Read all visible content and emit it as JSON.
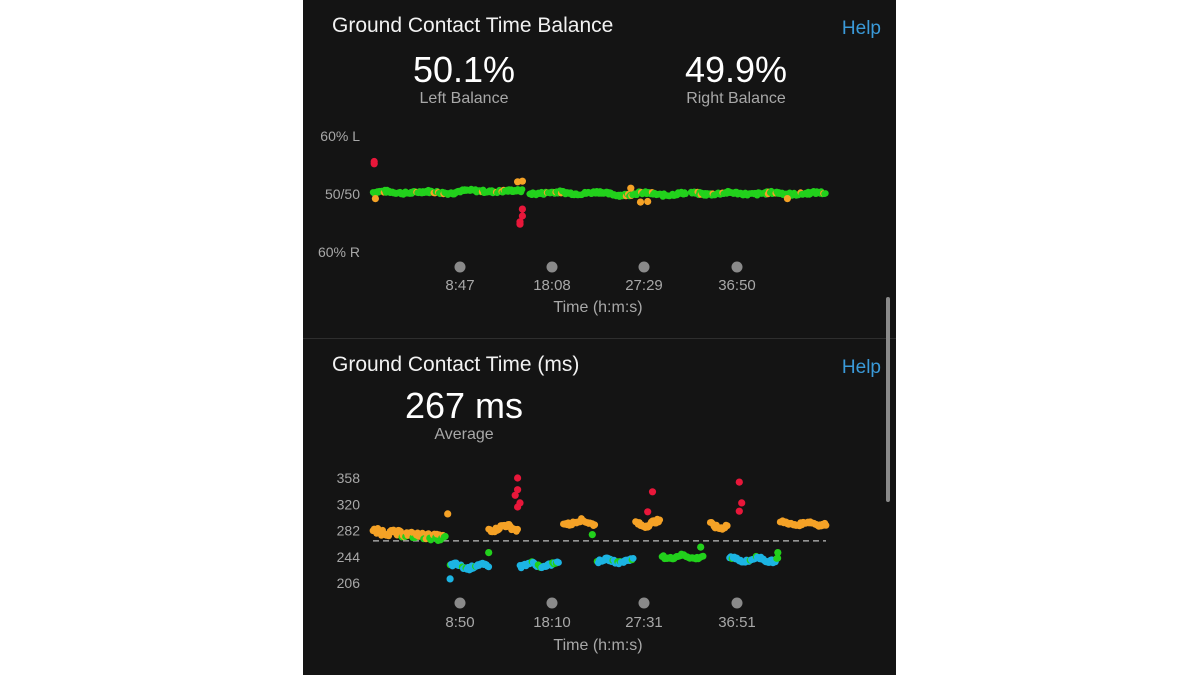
{
  "colors": {
    "background": "#141414",
    "accent_link": "#3a9ad9",
    "green": "#22d11c",
    "orange": "#f5a226",
    "red": "#e8173a",
    "blue": "#1cb4e3",
    "marker_gray": "#8a8a8a"
  },
  "balance": {
    "title": "Ground Contact Time Balance",
    "help_label": "Help",
    "left": {
      "value": "50.1%",
      "label": "Left Balance"
    },
    "right": {
      "value": "49.9%",
      "label": "Right Balance"
    }
  },
  "gct": {
    "title": "Ground Contact Time (ms)",
    "help_label": "Help",
    "average": {
      "value": "267 ms",
      "label": "Average"
    }
  },
  "chart_data": [
    {
      "type": "scatter",
      "title": "Ground Contact Time Balance",
      "xlabel": "Time (h:m:s)",
      "x_tick_labels": [
        "8:47",
        "18:08",
        "27:29",
        "36:50"
      ],
      "y_tick_labels": [
        "60% L",
        "50/50",
        "60% R"
      ],
      "ylim": [
        -10,
        10
      ],
      "grid": false,
      "segments": [
        {
          "from": 0,
          "to": 34,
          "base": 0.3,
          "drift": 0.15
        },
        {
          "from": 34,
          "to": 62,
          "base": 0.5,
          "drift": 0.1
        },
        {
          "from": 65,
          "to": 96,
          "base": 0.2,
          "drift": 0.15
        },
        {
          "from": 96,
          "to": 130,
          "base": 0.0,
          "drift": 0.2
        },
        {
          "from": 132,
          "to": 188,
          "base": 0.1,
          "drift": 0.15
        }
      ],
      "outliers": [
        {
          "t": 0.5,
          "v": 5.2,
          "color": "red"
        },
        {
          "t": 0.5,
          "v": 5.6,
          "color": "red"
        },
        {
          "t": 62,
          "v": -2.6,
          "color": "red"
        },
        {
          "t": 62,
          "v": -3.8,
          "color": "red"
        },
        {
          "t": 61,
          "v": -4.8,
          "color": "red"
        },
        {
          "t": 61,
          "v": -5.2,
          "color": "red"
        },
        {
          "t": 60,
          "v": 2.1,
          "color": "orange"
        },
        {
          "t": 62,
          "v": 2.2,
          "color": "orange"
        },
        {
          "t": 1,
          "v": -0.8,
          "color": "orange"
        },
        {
          "t": 107,
          "v": 1.0,
          "color": "orange"
        },
        {
          "t": 111,
          "v": -1.4,
          "color": "orange"
        },
        {
          "t": 114,
          "v": -1.3,
          "color": "orange"
        },
        {
          "t": 172,
          "v": -0.8,
          "color": "orange"
        }
      ]
    },
    {
      "type": "scatter",
      "title": "Ground Contact Time (ms)",
      "xlabel": "Time (h:m:s)",
      "x_tick_labels": [
        "8:50",
        "18:10",
        "27:31",
        "36:51"
      ],
      "y_ticks": [
        358,
        320,
        282,
        244,
        206
      ],
      "ylim": [
        196,
        368
      ],
      "average_line": 267,
      "grid": false,
      "segments": [
        {
          "from": 0,
          "to": 30,
          "base": 271,
          "drift": 6,
          "color": "mixed"
        },
        {
          "from": 32,
          "to": 48,
          "base": 230,
          "drift": 5,
          "color": "blue"
        },
        {
          "from": 48,
          "to": 60,
          "base": 286,
          "drift": 6,
          "color": "orange"
        },
        {
          "from": 61,
          "to": 77,
          "base": 232,
          "drift": 5,
          "color": "blue"
        },
        {
          "from": 79,
          "to": 92,
          "base": 294,
          "drift": 5,
          "color": "orange"
        },
        {
          "from": 93,
          "to": 108,
          "base": 238,
          "drift": 4,
          "color": "blue"
        },
        {
          "from": 109,
          "to": 119,
          "base": 292,
          "drift": 6,
          "color": "orange"
        },
        {
          "from": 120,
          "to": 137,
          "base": 244,
          "drift": 4,
          "color": "green"
        },
        {
          "from": 140,
          "to": 147,
          "base": 289,
          "drift": 6,
          "color": "orange"
        },
        {
          "from": 148,
          "to": 168,
          "base": 240,
          "drift": 5,
          "color": "blue"
        },
        {
          "from": 169,
          "to": 188,
          "base": 292,
          "drift": 4,
          "color": "orange"
        }
      ],
      "outliers": [
        {
          "t": 60,
          "v": 358,
          "color": "red"
        },
        {
          "t": 60,
          "v": 341,
          "color": "red"
        },
        {
          "t": 59,
          "v": 333,
          "color": "red"
        },
        {
          "t": 61,
          "v": 322,
          "color": "red"
        },
        {
          "t": 60,
          "v": 316,
          "color": "red"
        },
        {
          "t": 116,
          "v": 338,
          "color": "red"
        },
        {
          "t": 114,
          "v": 309,
          "color": "red"
        },
        {
          "t": 152,
          "v": 352,
          "color": "red"
        },
        {
          "t": 153,
          "v": 322,
          "color": "red"
        },
        {
          "t": 152,
          "v": 310,
          "color": "red"
        },
        {
          "t": 31,
          "v": 306,
          "color": "orange"
        },
        {
          "t": 32,
          "v": 212,
          "color": "blue"
        },
        {
          "t": 48,
          "v": 250,
          "color": "green"
        },
        {
          "t": 91,
          "v": 276,
          "color": "green"
        },
        {
          "t": 136,
          "v": 258,
          "color": "green"
        },
        {
          "t": 168,
          "v": 250,
          "color": "green"
        }
      ]
    }
  ]
}
